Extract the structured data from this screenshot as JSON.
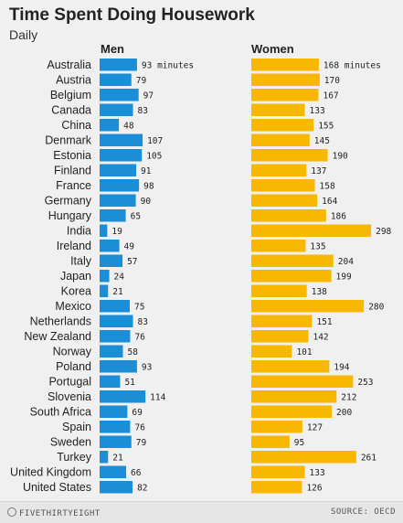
{
  "colors": {
    "men": "#1a8fd8",
    "women": "#f8b800"
  },
  "footer": {
    "brand": "FIVETHIRTYEIGHT",
    "source": "SOURCE: OECD"
  },
  "chart_data": {
    "type": "bar",
    "title": "Time Spent Doing Housework",
    "subtitle": "Daily",
    "unit_label": "minutes",
    "categories": [
      "Australia",
      "Austria",
      "Belgium",
      "Canada",
      "China",
      "Denmark",
      "Estonia",
      "Finland",
      "France",
      "Germany",
      "Hungary",
      "India",
      "Ireland",
      "Italy",
      "Japan",
      "Korea",
      "Mexico",
      "Netherlands",
      "New Zealand",
      "Norway",
      "Poland",
      "Portugal",
      "Slovenia",
      "South Africa",
      "Spain",
      "Sweden",
      "Turkey",
      "United Kingdom",
      "United States"
    ],
    "series": [
      {
        "name": "Men",
        "values": [
          93,
          79,
          97,
          83,
          48,
          107,
          105,
          91,
          98,
          90,
          65,
          19,
          49,
          57,
          24,
          21,
          75,
          83,
          76,
          58,
          93,
          51,
          114,
          69,
          76,
          79,
          21,
          66,
          82
        ]
      },
      {
        "name": "Women",
        "values": [
          168,
          170,
          167,
          133,
          155,
          145,
          190,
          137,
          158,
          164,
          186,
          298,
          135,
          204,
          199,
          138,
          280,
          151,
          142,
          101,
          194,
          253,
          212,
          200,
          127,
          95,
          261,
          133,
          126
        ]
      }
    ]
  }
}
